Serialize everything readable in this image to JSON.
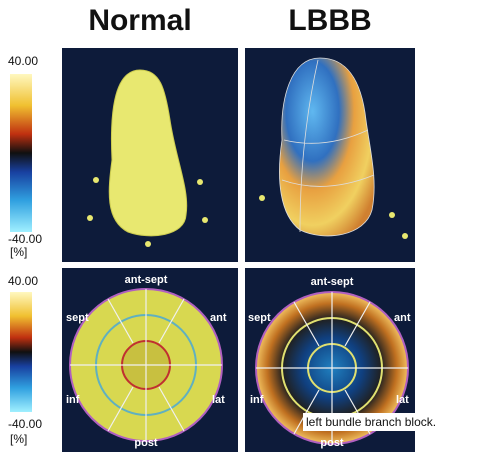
{
  "header": {
    "left_title": "Normal",
    "right_title": "LBBB"
  },
  "colorbars": [
    {
      "max": "40.00",
      "min": "-40.00",
      "unit": "[%]"
    },
    {
      "max": "40.00",
      "min": "-40.00",
      "unit": "[%]"
    }
  ],
  "bullseyes": [
    {
      "top": "ant-sept",
      "upper_left": "sept",
      "upper_right": "ant",
      "lower_left": "inf",
      "lower_right": "lat",
      "bottom": "post"
    },
    {
      "top": "ant-sept",
      "upper_left": "sept",
      "upper_right": "ant",
      "lower_left": "inf",
      "lower_right": "lat",
      "bottom": "post"
    }
  ],
  "caption": "left bundle branch block."
}
